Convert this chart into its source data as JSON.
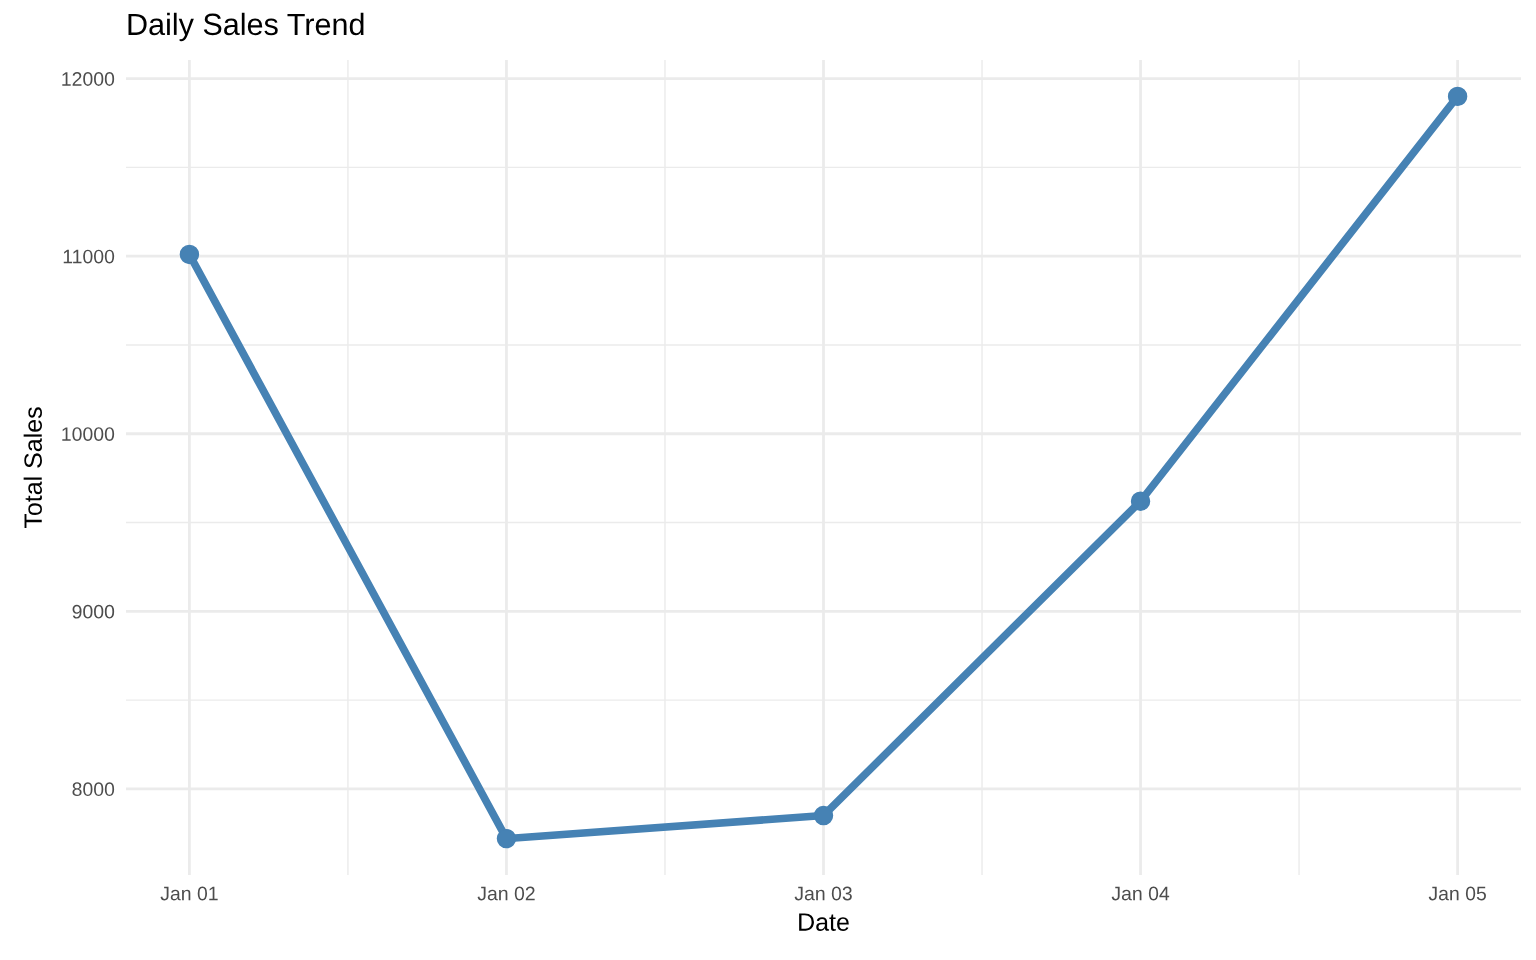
{
  "chart_data": {
    "type": "line",
    "title": "Daily Sales Trend",
    "xlabel": "Date",
    "ylabel": "Total Sales",
    "categories": [
      "Jan 01",
      "Jan 02",
      "Jan 03",
      "Jan 04",
      "Jan 05"
    ],
    "series": [
      {
        "color": "#4682b4",
        "values": [
          11010,
          7720,
          7850,
          9620,
          11900
        ]
      }
    ],
    "ylim": [
      7515,
      12105
    ],
    "yticks": [
      8000,
      9000,
      10000,
      11000,
      12000
    ],
    "grid": true,
    "marker": "circle",
    "line_style": "solid"
  }
}
